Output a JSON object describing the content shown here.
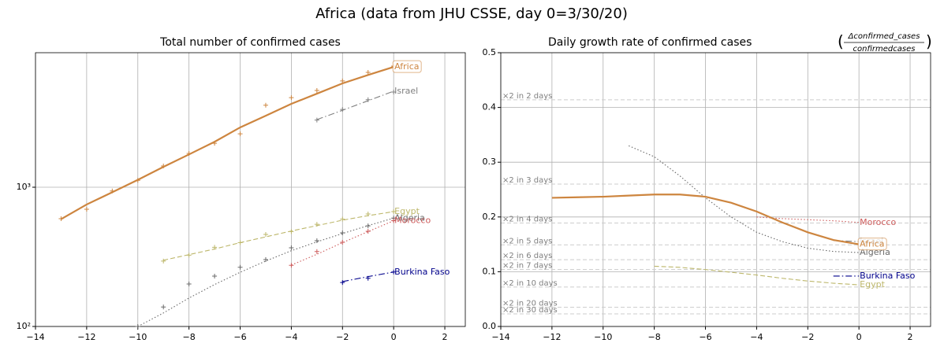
{
  "suptitle": "Africa (data from JHU CSSE, day 0=3/30/20)",
  "chart_data": [
    {
      "type": "line",
      "title": "Total number of confirmed cases",
      "xlim": [
        -14,
        2.8
      ],
      "xticks": [
        {
          "value": -14,
          "label": "−14"
        },
        {
          "value": -12,
          "label": "−12"
        },
        {
          "value": -10,
          "label": "−10"
        },
        {
          "value": -8,
          "label": "−8"
        },
        {
          "value": -6,
          "label": "−6"
        },
        {
          "value": -4,
          "label": "−4"
        },
        {
          "value": -2,
          "label": "−2"
        },
        0,
        2
      ],
      "ylim": [
        100,
        9250
      ],
      "log": true,
      "yticks": [
        {
          "value": 100,
          "label": "10²"
        },
        {
          "value": 1000,
          "label": "10³"
        }
      ],
      "grid": true,
      "series": [
        {
          "name": "Africa",
          "color": "#cd853f",
          "dash": "solid",
          "width": 2,
          "label_box": true,
          "x": [
            -13,
            -12,
            -11,
            -10,
            -9,
            -8,
            -7,
            -6,
            -5,
            -4,
            -3,
            -2,
            -1,
            0
          ],
          "values": [
            590,
            752,
            920,
            1130,
            1400,
            1720,
            2120,
            2690,
            3260,
            3970,
            4700,
            5570,
            6400,
            7310
          ],
          "raw": [
            594,
            695,
            940,
            1120,
            1420,
            1750,
            2070,
            2420,
            3880,
            4400,
            4950,
            5800,
            6680,
            7420
          ]
        },
        {
          "name": "Israel",
          "color": "#808080",
          "dash": "dashdot",
          "width": 1,
          "x": [
            -3,
            -2,
            -1,
            0
          ],
          "values": [
            3060,
            3570,
            4180,
            4900
          ],
          "raw": [
            3035,
            3620,
            4250,
            4830
          ]
        },
        {
          "name": "Egypt",
          "color": "#bdb76b",
          "dash": "dashed",
          "width": 1,
          "x": [
            -9,
            -8,
            -7,
            -6,
            -5,
            -4,
            -3,
            -2,
            -1,
            0
          ],
          "values": [
            299,
            328,
            360,
            400,
            440,
            485,
            530,
            580,
            625,
            668
          ],
          "raw": [
            295,
            325,
            370,
            400,
            458,
            480,
            542,
            590,
            643,
            668
          ]
        },
        {
          "name": "Algeria",
          "color": "#696969",
          "dash": "dotted",
          "width": 1,
          "x": [
            -10,
            -9,
            -8,
            -7,
            -6,
            -5,
            -4,
            -3,
            -2,
            -1,
            0
          ],
          "values": [
            100,
            125,
            160,
            200,
            245,
            295,
            350,
            405,
            465,
            530,
            600
          ],
          "raw": [
            100,
            138,
            202,
            230,
            266,
            302,
            367,
            413,
            470,
            528,
            600
          ]
        },
        {
          "name": "Morocco",
          "color": "#cd5c5c",
          "dash": "dotted",
          "width": 1,
          "x": [
            -4,
            -3,
            -2,
            -1,
            0
          ],
          "values": [
            276,
            330,
            400,
            480,
            575
          ],
          "raw": [
            275,
            345,
            402,
            483,
            575
          ]
        },
        {
          "name": "Burkina Faso",
          "color": "#00008b",
          "dash": "dashdot",
          "width": 1,
          "x": [
            -2,
            -1,
            0
          ],
          "values": [
            210,
            228,
            246
          ],
          "raw": [
            207,
            222,
            246
          ]
        }
      ]
    },
    {
      "type": "line",
      "title": "Daily growth rate of confirmed cases",
      "title_fraction": {
        "numerator": "Δconfirmed_cases",
        "denominator": "confirmedcases"
      },
      "xlim": [
        -14,
        2.8
      ],
      "xticks": [
        {
          "value": -14,
          "label": "−14"
        },
        {
          "value": -12,
          "label": "−12"
        },
        {
          "value": -10,
          "label": "−10"
        },
        {
          "value": -8,
          "label": "−8"
        },
        {
          "value": -6,
          "label": "−6"
        },
        {
          "value": -4,
          "label": "−4"
        },
        {
          "value": -2,
          "label": "−2"
        },
        0,
        2
      ],
      "ylim": [
        0,
        0.5
      ],
      "log": false,
      "yticks": [
        {
          "value": 0,
          "label": "0.0"
        },
        0.1,
        0.2,
        0.3,
        0.4,
        0.5
      ],
      "grid": true,
      "doubling_lines": [
        {
          "label": "×2 in 2 days",
          "value": 0.414
        },
        {
          "label": "×2 in 3 days",
          "value": 0.26
        },
        {
          "label": "×2 in 4 days",
          "value": 0.189
        },
        {
          "label": "×2 in 5 days",
          "value": 0.149
        },
        {
          "label": "×2 in 6 days",
          "value": 0.122
        },
        {
          "label": "×2 in 7 days",
          "value": 0.104
        },
        {
          "label": "×2 in 10 days",
          "value": 0.072
        },
        {
          "label": "×2 in 20 days",
          "value": 0.035
        },
        {
          "label": "×2 in 30 days",
          "value": 0.023
        }
      ],
      "series": [
        {
          "name": "Morocco",
          "color": "#cd5c5c",
          "dash": "dotted",
          "width": 1,
          "x": [
            -4,
            -3,
            -2,
            -1,
            0
          ],
          "values": [
            0.2,
            0.197,
            0.195,
            0.193,
            0.19
          ]
        },
        {
          "name": "Israel",
          "color": "#808080",
          "dash": "dashdot",
          "width": 1,
          "x": [
            -1,
            0
          ],
          "values": [
            0.157,
            0.155
          ]
        },
        {
          "name": "Algeria",
          "color": "#696969",
          "dash": "dotted",
          "width": 1,
          "x": [
            -9,
            -8,
            -7,
            -6,
            -5,
            -4,
            -3,
            -2,
            -1,
            0
          ],
          "values": [
            0.33,
            0.31,
            0.275,
            0.235,
            0.2,
            0.172,
            0.155,
            0.143,
            0.137,
            0.135
          ]
        },
        {
          "name": "Africa",
          "color": "#cd853f",
          "dash": "solid",
          "width": 2,
          "label_box": true,
          "x": [
            -12,
            -11,
            -10,
            -9,
            -8,
            -7,
            -6,
            -5,
            -4,
            -3,
            -2,
            -1,
            0
          ],
          "values": [
            0.235,
            0.236,
            0.237,
            0.239,
            0.241,
            0.241,
            0.237,
            0.226,
            0.21,
            0.19,
            0.172,
            0.158,
            0.15
          ]
        },
        {
          "name": "Burkina Faso",
          "color": "#00008b",
          "dash": "dashdot",
          "width": 1,
          "x": [
            -1,
            0
          ],
          "values": [
            0.092,
            0.092
          ]
        },
        {
          "name": "Egypt",
          "color": "#bdb76b",
          "dash": "dashed",
          "width": 1,
          "x": [
            -8,
            -7,
            -6,
            -5,
            -4,
            -3,
            -2,
            -1,
            0
          ],
          "values": [
            0.11,
            0.108,
            0.104,
            0.099,
            0.094,
            0.088,
            0.083,
            0.079,
            0.076
          ]
        }
      ]
    }
  ]
}
